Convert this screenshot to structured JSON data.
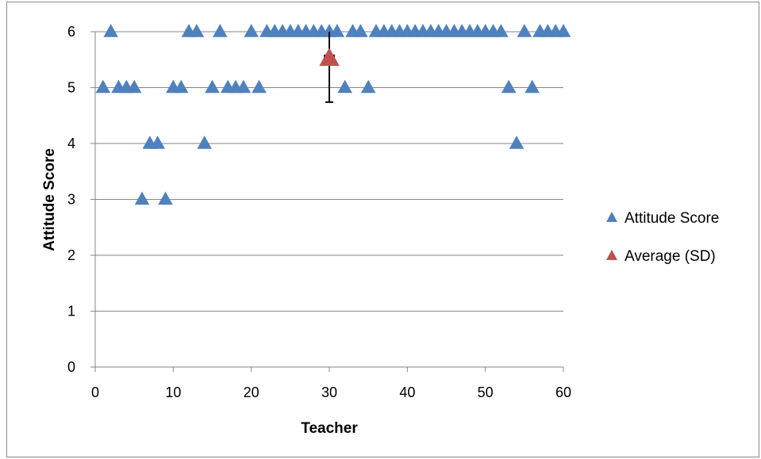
{
  "chart_data": {
    "type": "scatter",
    "xlabel": "Teacher",
    "ylabel": "Attitude Score",
    "xlim": [
      0,
      60
    ],
    "ylim": [
      0,
      6
    ],
    "x_ticks": [
      "0",
      "10",
      "20",
      "30",
      "40",
      "50",
      "60"
    ],
    "y_ticks": [
      "0",
      "1",
      "2",
      "3",
      "4",
      "5",
      "6"
    ],
    "grid": "horizontal",
    "legend_position": "right",
    "colors": {
      "attitude": "#4F81BD",
      "average": "#C0504D",
      "grid": "#868686",
      "errorbar": "#000000"
    },
    "series": [
      {
        "name": "Attitude Score",
        "marker": "triangle",
        "x": [
          1,
          2,
          3,
          4,
          5,
          6,
          7,
          8,
          9,
          10,
          11,
          12,
          13,
          14,
          15,
          16,
          17,
          18,
          19,
          20,
          21,
          22,
          23,
          24,
          25,
          26,
          27,
          28,
          29,
          30,
          31,
          32,
          33,
          34,
          35,
          36,
          37,
          38,
          39,
          40,
          41,
          42,
          43,
          44,
          45,
          46,
          47,
          48,
          49,
          50,
          51,
          52,
          53,
          54,
          55,
          56,
          57,
          58,
          59,
          60
        ],
        "y": [
          5,
          6,
          5,
          5,
          5,
          3,
          4,
          4,
          3,
          5,
          5,
          6,
          6,
          4,
          5,
          6,
          5,
          5,
          5,
          6,
          5,
          6,
          6,
          6,
          6,
          6,
          6,
          6,
          6,
          6,
          6,
          5,
          6,
          6,
          5,
          6,
          6,
          6,
          6,
          6,
          6,
          6,
          6,
          6,
          6,
          6,
          6,
          6,
          6,
          6,
          6,
          6,
          5,
          4,
          6,
          5,
          6,
          6,
          6,
          6
        ]
      },
      {
        "name": "Average (SD)",
        "marker": "triangle",
        "x": [
          30
        ],
        "y": [
          5.52
        ],
        "y_err": [
          0.78
        ],
        "x_err": [
          0.6
        ]
      }
    ]
  }
}
